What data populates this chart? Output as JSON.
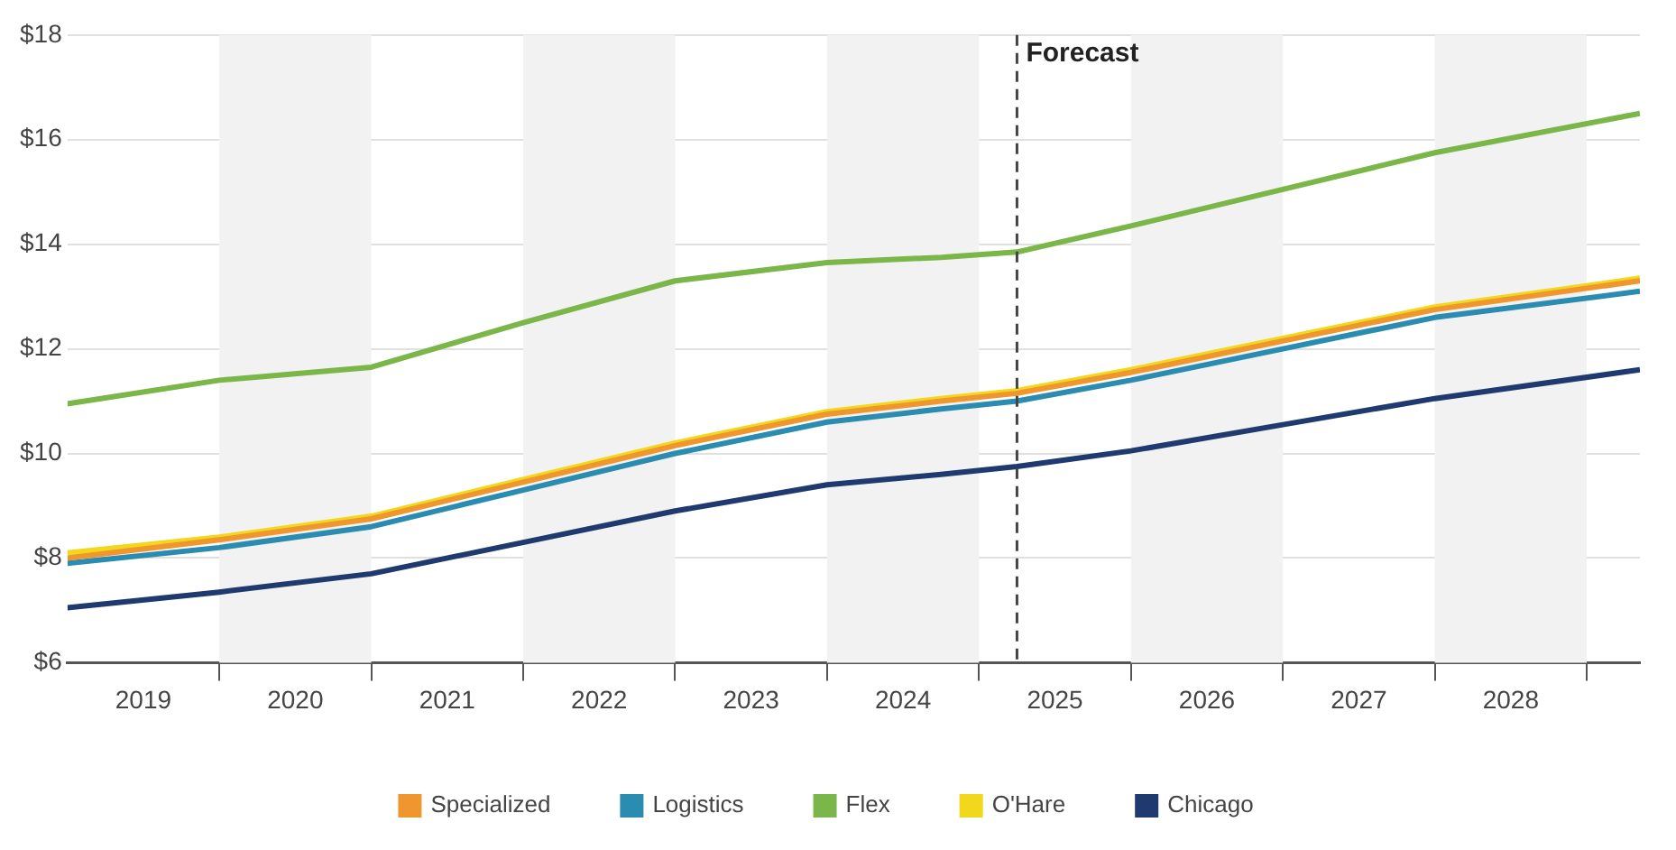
{
  "chart_data": {
    "type": "line",
    "x": [
      2019,
      2020,
      2021,
      2022,
      2023,
      2024,
      2024.75,
      2025.25,
      2026,
      2027,
      2028,
      2029.35
    ],
    "series": [
      {
        "name": "Specialized",
        "color": "#f0962e",
        "values": [
          8.0,
          8.35,
          8.75,
          9.45,
          10.15,
          10.75,
          11.0,
          11.15,
          11.55,
          12.15,
          12.75,
          13.3
        ]
      },
      {
        "name": "Logistics",
        "color": "#2a8cb0",
        "values": [
          7.9,
          8.2,
          8.6,
          9.3,
          10.0,
          10.6,
          10.85,
          11.0,
          11.4,
          12.0,
          12.6,
          13.1
        ]
      },
      {
        "name": "Flex",
        "color": "#7ab648",
        "values": [
          10.95,
          11.4,
          11.65,
          12.5,
          13.3,
          13.65,
          13.75,
          13.85,
          14.35,
          15.05,
          15.75,
          16.5
        ]
      },
      {
        "name": "O'Hare",
        "color": "#f2d81c",
        "values": [
          8.1,
          8.4,
          8.8,
          9.5,
          10.2,
          10.8,
          11.05,
          11.2,
          11.6,
          12.2,
          12.8,
          13.35
        ]
      },
      {
        "name": "Chicago",
        "color": "#1f3a6e",
        "values": [
          7.05,
          7.35,
          7.7,
          8.3,
          8.9,
          9.4,
          9.6,
          9.75,
          10.05,
          10.55,
          11.05,
          11.6
        ]
      }
    ],
    "xlim": [
      2019,
      2029.35
    ],
    "xticks": [
      {
        "value": 2019.5,
        "label": "2019"
      },
      {
        "value": 2020,
        "label": null
      },
      {
        "value": 2020.5,
        "label": "2020"
      },
      {
        "value": 2021,
        "label": null
      },
      {
        "value": 2021.5,
        "label": "2021"
      },
      {
        "value": 2022,
        "label": null
      },
      {
        "value": 2022.5,
        "label": "2022"
      },
      {
        "value": 2023,
        "label": null
      },
      {
        "value": 2023.5,
        "label": "2023"
      },
      {
        "value": 2024,
        "label": null
      },
      {
        "value": 2024.5,
        "label": "2024"
      },
      {
        "value": 2025,
        "label": null
      },
      {
        "value": 2025.5,
        "label": "2025"
      },
      {
        "value": 2026,
        "label": null
      },
      {
        "value": 2026.5,
        "label": "2026"
      },
      {
        "value": 2027,
        "label": null
      },
      {
        "value": 2027.5,
        "label": "2027"
      },
      {
        "value": 2028,
        "label": null
      },
      {
        "value": 2028.5,
        "label": "2028"
      },
      {
        "value": 2029,
        "label": null
      }
    ],
    "ylim": [
      6,
      18
    ],
    "yticks": [
      {
        "value": 6,
        "label": "$6"
      },
      {
        "value": 8,
        "label": "$8"
      },
      {
        "value": 10,
        "label": "$10"
      },
      {
        "value": 12,
        "label": "$12"
      },
      {
        "value": 14,
        "label": "$14"
      },
      {
        "value": 16,
        "label": "$16"
      },
      {
        "value": 18,
        "label": "$18"
      }
    ],
    "bands": [
      {
        "axis": "x",
        "from": 2020,
        "to": 2021,
        "color": "#f2f2f2"
      },
      {
        "axis": "x",
        "from": 2022,
        "to": 2023,
        "color": "#f2f2f2"
      },
      {
        "axis": "x",
        "from": 2024,
        "to": 2025,
        "color": "#f2f2f2"
      },
      {
        "axis": "x",
        "from": 2026,
        "to": 2027,
        "color": "#f2f2f2"
      },
      {
        "axis": "x",
        "from": 2028,
        "to": 2029,
        "color": "#f2f2f2"
      }
    ],
    "ref_lines": [
      {
        "axis": "x",
        "value": 2025.25,
        "label": "Forecast",
        "color": "#444444",
        "line_style": "dashed"
      }
    ],
    "grid": "y",
    "legend": "bottom",
    "marker": "none",
    "line_style": "solid"
  }
}
